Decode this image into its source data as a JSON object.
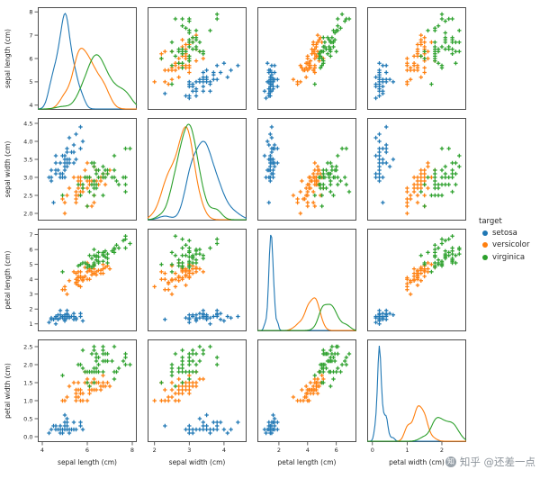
{
  "watermark": {
    "text": "知乎 @还差一点"
  },
  "chart_data": {
    "type": "scatter",
    "subtype": "pairplot",
    "diagonal": "kde",
    "marker": "+",
    "grid": false,
    "variables": [
      "sepal length (cm)",
      "sepal width (cm)",
      "petal length (cm)",
      "petal width (cm)"
    ],
    "legend": {
      "title": "target",
      "position": "right",
      "entries": [
        {
          "label": "setosa",
          "color": "#1f77b4"
        },
        {
          "label": "versicolor",
          "color": "#ff7f0e"
        },
        {
          "label": "virginica",
          "color": "#2ca02c"
        }
      ]
    },
    "axes": [
      {
        "label": "sepal length (cm)",
        "range": [
          3.8,
          8.2
        ],
        "yticks": [
          "4",
          "5",
          "6",
          "7",
          "8"
        ],
        "xticks": [
          "4",
          "6",
          "8"
        ]
      },
      {
        "label": "sepal width (cm)",
        "range": [
          1.8,
          4.65
        ],
        "yticks": [
          "2.0",
          "2.5",
          "3.0",
          "3.5",
          "4.0",
          "4.5"
        ],
        "xticks": [
          "2",
          "3",
          "4"
        ]
      },
      {
        "label": "petal length (cm)",
        "range": [
          0.5,
          7.4
        ],
        "yticks": [
          "1",
          "2",
          "3",
          "4",
          "5",
          "6",
          "7"
        ],
        "xticks": [
          "2",
          "4",
          "6"
        ]
      },
      {
        "label": "petal width (cm)",
        "range": [
          -0.15,
          2.7
        ],
        "yticks": [
          "0.0",
          "0.5",
          "1.0",
          "1.5",
          "2.0",
          "2.5"
        ],
        "xticks": [
          "0",
          "1",
          "2"
        ]
      }
    ],
    "series": [
      {
        "name": "setosa",
        "color": "#1f77b4",
        "points": [
          [
            5.1,
            3.5,
            1.4,
            0.2
          ],
          [
            4.9,
            3.0,
            1.4,
            0.2
          ],
          [
            4.7,
            3.2,
            1.3,
            0.2
          ],
          [
            4.6,
            3.1,
            1.5,
            0.2
          ],
          [
            5.0,
            3.6,
            1.4,
            0.2
          ],
          [
            5.4,
            3.9,
            1.7,
            0.4
          ],
          [
            4.6,
            3.4,
            1.4,
            0.3
          ],
          [
            5.0,
            3.4,
            1.5,
            0.2
          ],
          [
            4.4,
            2.9,
            1.4,
            0.2
          ],
          [
            4.9,
            3.1,
            1.5,
            0.1
          ],
          [
            5.4,
            3.7,
            1.5,
            0.2
          ],
          [
            4.8,
            3.4,
            1.6,
            0.2
          ],
          [
            4.8,
            3.0,
            1.4,
            0.1
          ],
          [
            4.3,
            3.0,
            1.1,
            0.1
          ],
          [
            5.8,
            4.0,
            1.2,
            0.2
          ],
          [
            5.7,
            4.4,
            1.5,
            0.4
          ],
          [
            5.4,
            3.9,
            1.3,
            0.4
          ],
          [
            5.1,
            3.5,
            1.4,
            0.3
          ],
          [
            5.7,
            3.8,
            1.7,
            0.3
          ],
          [
            5.1,
            3.8,
            1.5,
            0.3
          ],
          [
            5.4,
            3.4,
            1.7,
            0.2
          ],
          [
            5.1,
            3.7,
            1.5,
            0.4
          ],
          [
            4.6,
            3.6,
            1.0,
            0.2
          ],
          [
            5.1,
            3.3,
            1.7,
            0.5
          ],
          [
            4.8,
            3.4,
            1.9,
            0.2
          ],
          [
            5.0,
            3.0,
            1.6,
            0.2
          ],
          [
            5.0,
            3.4,
            1.6,
            0.4
          ],
          [
            5.2,
            3.5,
            1.5,
            0.2
          ],
          [
            5.2,
            3.4,
            1.4,
            0.2
          ],
          [
            4.7,
            3.2,
            1.6,
            0.2
          ],
          [
            4.8,
            3.1,
            1.6,
            0.2
          ],
          [
            5.4,
            3.4,
            1.5,
            0.4
          ],
          [
            5.2,
            4.1,
            1.5,
            0.1
          ],
          [
            5.5,
            4.2,
            1.4,
            0.2
          ],
          [
            4.9,
            3.1,
            1.5,
            0.2
          ],
          [
            5.0,
            3.2,
            1.2,
            0.2
          ],
          [
            5.5,
            3.5,
            1.3,
            0.2
          ],
          [
            4.9,
            3.6,
            1.4,
            0.1
          ],
          [
            4.4,
            3.0,
            1.3,
            0.2
          ],
          [
            5.1,
            3.4,
            1.5,
            0.2
          ],
          [
            5.0,
            3.5,
            1.3,
            0.3
          ],
          [
            4.5,
            2.3,
            1.3,
            0.3
          ],
          [
            4.4,
            3.2,
            1.3,
            0.2
          ],
          [
            5.0,
            3.5,
            1.6,
            0.6
          ],
          [
            5.1,
            3.8,
            1.9,
            0.4
          ],
          [
            4.8,
            3.0,
            1.4,
            0.3
          ],
          [
            5.1,
            3.8,
            1.6,
            0.2
          ],
          [
            4.6,
            3.2,
            1.4,
            0.2
          ],
          [
            5.3,
            3.7,
            1.5,
            0.2
          ],
          [
            5.0,
            3.3,
            1.4,
            0.2
          ]
        ]
      },
      {
        "name": "versicolor",
        "color": "#ff7f0e",
        "points": [
          [
            7.0,
            3.2,
            4.7,
            1.4
          ],
          [
            6.4,
            3.2,
            4.5,
            1.5
          ],
          [
            6.9,
            3.1,
            4.9,
            1.5
          ],
          [
            5.5,
            2.3,
            4.0,
            1.3
          ],
          [
            6.5,
            2.8,
            4.6,
            1.5
          ],
          [
            5.7,
            2.8,
            4.5,
            1.3
          ],
          [
            6.3,
            3.3,
            4.7,
            1.6
          ],
          [
            4.9,
            2.4,
            3.3,
            1.0
          ],
          [
            6.6,
            2.9,
            4.6,
            1.3
          ],
          [
            5.2,
            2.7,
            3.9,
            1.4
          ],
          [
            5.0,
            2.0,
            3.5,
            1.0
          ],
          [
            5.9,
            3.0,
            4.2,
            1.5
          ],
          [
            6.0,
            2.2,
            4.0,
            1.0
          ],
          [
            6.1,
            2.9,
            4.7,
            1.4
          ],
          [
            5.6,
            2.9,
            3.6,
            1.3
          ],
          [
            6.7,
            3.1,
            4.4,
            1.4
          ],
          [
            5.6,
            3.0,
            4.5,
            1.5
          ],
          [
            5.8,
            2.7,
            4.1,
            1.0
          ],
          [
            6.2,
            2.2,
            4.5,
            1.5
          ],
          [
            5.6,
            2.5,
            3.9,
            1.1
          ],
          [
            5.9,
            3.2,
            4.8,
            1.8
          ],
          [
            6.1,
            2.8,
            4.0,
            1.3
          ],
          [
            6.3,
            2.5,
            4.9,
            1.5
          ],
          [
            6.1,
            2.8,
            4.7,
            1.2
          ],
          [
            6.4,
            2.9,
            4.3,
            1.3
          ],
          [
            6.6,
            3.0,
            4.4,
            1.4
          ],
          [
            6.8,
            2.8,
            4.8,
            1.4
          ],
          [
            6.7,
            3.0,
            5.0,
            1.7
          ],
          [
            6.0,
            2.9,
            4.5,
            1.5
          ],
          [
            5.7,
            2.6,
            3.5,
            1.0
          ],
          [
            5.5,
            2.4,
            3.8,
            1.1
          ],
          [
            5.5,
            2.4,
            3.7,
            1.0
          ],
          [
            5.8,
            2.7,
            3.9,
            1.2
          ],
          [
            6.0,
            2.7,
            5.1,
            1.6
          ],
          [
            5.4,
            3.0,
            4.5,
            1.5
          ],
          [
            6.0,
            3.4,
            4.5,
            1.6
          ],
          [
            6.7,
            3.1,
            4.7,
            1.5
          ],
          [
            6.3,
            2.3,
            4.4,
            1.3
          ],
          [
            5.6,
            3.0,
            4.1,
            1.3
          ],
          [
            5.5,
            2.5,
            4.0,
            1.3
          ],
          [
            5.5,
            2.6,
            4.4,
            1.2
          ],
          [
            6.1,
            3.0,
            4.6,
            1.4
          ],
          [
            5.8,
            2.6,
            4.0,
            1.2
          ],
          [
            5.0,
            2.3,
            3.3,
            1.0
          ],
          [
            5.6,
            2.7,
            4.2,
            1.3
          ],
          [
            5.7,
            3.0,
            4.2,
            1.2
          ],
          [
            5.7,
            2.9,
            4.2,
            1.3
          ],
          [
            6.2,
            2.9,
            4.3,
            1.3
          ],
          [
            5.1,
            2.5,
            3.0,
            1.1
          ],
          [
            5.7,
            2.8,
            4.1,
            1.3
          ]
        ]
      },
      {
        "name": "virginica",
        "color": "#2ca02c",
        "points": [
          [
            6.3,
            3.3,
            6.0,
            2.5
          ],
          [
            5.8,
            2.7,
            5.1,
            1.9
          ],
          [
            7.1,
            3.0,
            5.9,
            2.1
          ],
          [
            6.3,
            2.9,
            5.6,
            1.8
          ],
          [
            6.5,
            3.0,
            5.8,
            2.2
          ],
          [
            7.6,
            3.0,
            6.6,
            2.1
          ],
          [
            4.9,
            2.5,
            4.5,
            1.7
          ],
          [
            7.3,
            2.9,
            6.3,
            1.8
          ],
          [
            6.7,
            2.5,
            5.8,
            1.8
          ],
          [
            7.2,
            3.6,
            6.1,
            2.5
          ],
          [
            6.5,
            3.2,
            5.1,
            2.0
          ],
          [
            6.4,
            2.7,
            5.3,
            1.9
          ],
          [
            6.8,
            3.0,
            5.5,
            2.1
          ],
          [
            5.7,
            2.5,
            5.0,
            2.0
          ],
          [
            5.8,
            2.8,
            5.1,
            2.4
          ],
          [
            6.4,
            3.2,
            5.3,
            2.3
          ],
          [
            6.5,
            3.0,
            5.5,
            1.8
          ],
          [
            7.7,
            3.8,
            6.7,
            2.2
          ],
          [
            7.7,
            2.6,
            6.9,
            2.3
          ],
          [
            6.0,
            2.2,
            5.0,
            1.5
          ],
          [
            6.9,
            3.2,
            5.7,
            2.3
          ],
          [
            5.6,
            2.8,
            4.9,
            2.0
          ],
          [
            7.7,
            2.8,
            6.7,
            2.0
          ],
          [
            6.3,
            2.7,
            4.9,
            1.8
          ],
          [
            6.7,
            3.3,
            5.7,
            2.1
          ],
          [
            7.2,
            3.2,
            6.0,
            1.8
          ],
          [
            6.2,
            2.8,
            4.8,
            1.8
          ],
          [
            6.1,
            3.0,
            4.9,
            1.8
          ],
          [
            6.4,
            2.8,
            5.6,
            2.1
          ],
          [
            7.2,
            3.0,
            5.8,
            1.6
          ],
          [
            7.4,
            2.8,
            6.1,
            1.9
          ],
          [
            7.9,
            3.8,
            6.4,
            2.0
          ],
          [
            6.4,
            2.8,
            5.6,
            2.2
          ],
          [
            6.3,
            2.8,
            5.1,
            1.5
          ],
          [
            6.1,
            2.6,
            5.6,
            1.4
          ],
          [
            7.7,
            3.0,
            6.1,
            2.3
          ],
          [
            6.3,
            3.4,
            5.6,
            2.4
          ],
          [
            6.4,
            3.1,
            5.5,
            1.8
          ],
          [
            6.0,
            3.0,
            4.8,
            1.8
          ],
          [
            6.9,
            3.1,
            5.4,
            2.1
          ],
          [
            6.7,
            3.1,
            5.6,
            2.4
          ],
          [
            6.9,
            3.1,
            5.1,
            2.3
          ],
          [
            5.8,
            2.7,
            5.1,
            1.9
          ],
          [
            6.8,
            3.2,
            5.9,
            2.3
          ],
          [
            6.7,
            3.3,
            5.7,
            2.5
          ],
          [
            6.7,
            3.0,
            5.2,
            2.3
          ],
          [
            6.3,
            2.5,
            5.0,
            1.9
          ],
          [
            6.5,
            3.0,
            5.2,
            2.0
          ],
          [
            6.2,
            3.4,
            5.4,
            2.3
          ],
          [
            5.9,
            3.0,
            5.1,
            1.8
          ]
        ]
      }
    ]
  }
}
